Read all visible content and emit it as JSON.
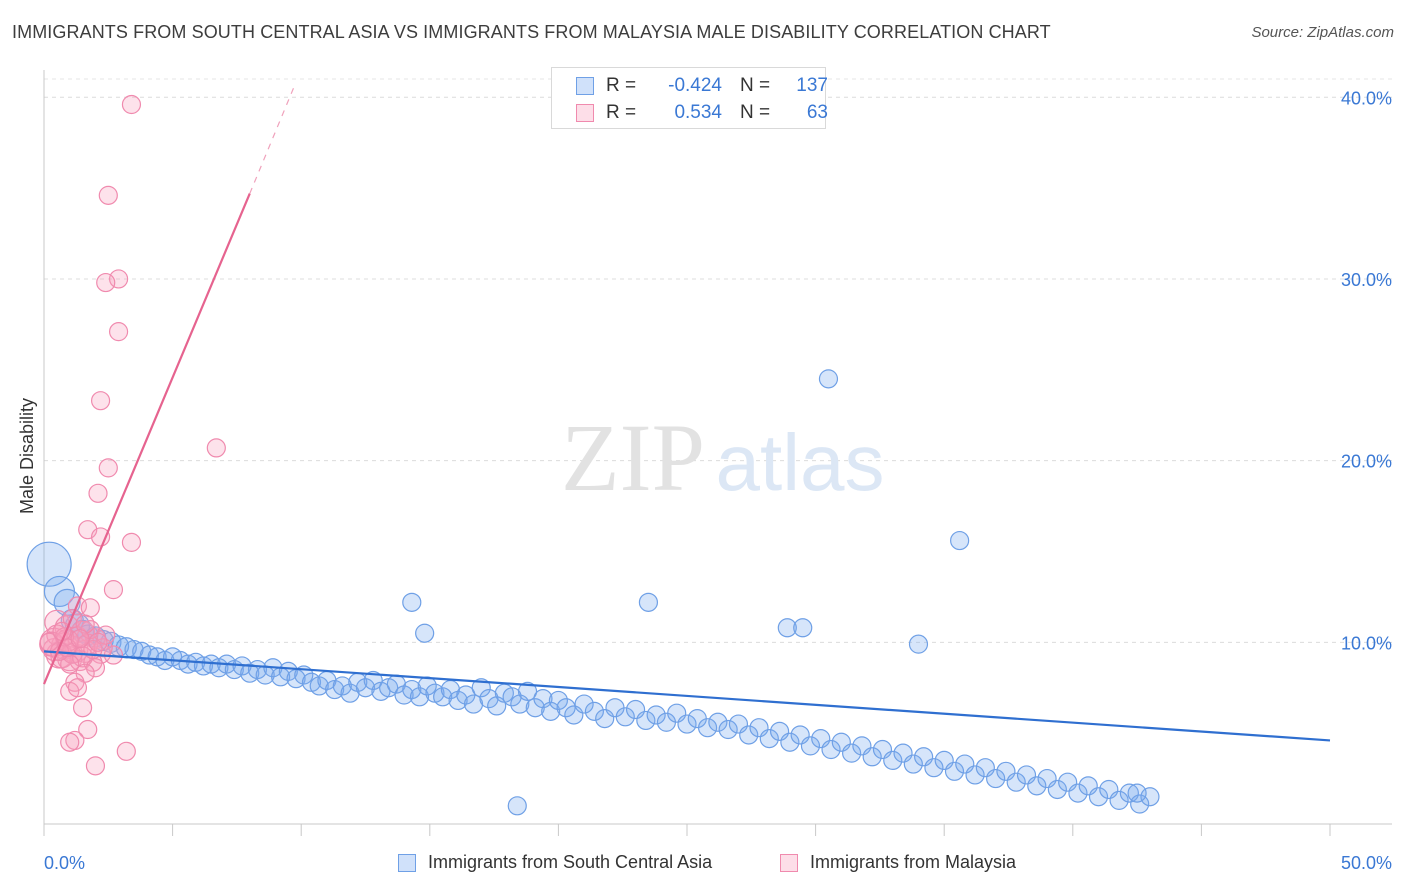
{
  "title": "IMMIGRANTS FROM SOUTH CENTRAL ASIA VS IMMIGRANTS FROM MALAYSIA MALE DISABILITY CORRELATION CHART",
  "source": "Source: ZipAtlas.com",
  "watermark": {
    "zip": "ZIP",
    "atlas": "atlas"
  },
  "colors": {
    "blue_fill": "rgba(120,170,240,0.30)",
    "blue_stroke": "#6fa0e6",
    "blue_line": "#2f6fd0",
    "pink_fill": "rgba(248,160,190,0.30)",
    "pink_stroke": "#f08aae",
    "pink_line": "#e6638f",
    "tick_label": "#3a78d4"
  },
  "stats": {
    "rows": [
      {
        "r_label": "R =",
        "r_value": "-0.424",
        "n_label": "N =",
        "n_value": "137",
        "series": "blue"
      },
      {
        "r_label": "R =",
        "r_value": "0.534",
        "n_label": "N =",
        "n_value": "63",
        "series": "pink"
      }
    ]
  },
  "chart_data": {
    "type": "scatter",
    "title": "IMMIGRANTS FROM SOUTH CENTRAL ASIA VS IMMIGRANTS FROM MALAYSIA MALE DISABILITY CORRELATION CHART",
    "ylabel": "Male Disability",
    "xlabel": "",
    "xlim": [
      0,
      50
    ],
    "ylim": [
      0,
      41.5
    ],
    "x_tick_labels": [
      "0.0%",
      "50.0%"
    ],
    "y_ticks": [
      10,
      20,
      30,
      40
    ],
    "y_tick_labels": [
      "10.0%",
      "20.0%",
      "30.0%",
      "40.0%"
    ],
    "grid": true,
    "legend_position": "bottom",
    "series": [
      {
        "name": "Immigrants from South Central Asia",
        "color": "blue",
        "trend": {
          "x": [
            0,
            50
          ],
          "y": [
            9.5,
            4.6
          ]
        },
        "points": [
          [
            0.2,
            14.3,
            22
          ],
          [
            0.6,
            12.8,
            15
          ],
          [
            0.9,
            12.2,
            13
          ],
          [
            1.1,
            11.2,
            11
          ],
          [
            1.3,
            10.9,
            12
          ],
          [
            1.5,
            10.6,
            11
          ],
          [
            1.7,
            10.4,
            10
          ],
          [
            2.0,
            10.3,
            10
          ],
          [
            2.3,
            10.1,
            10
          ],
          [
            2.6,
            10.0,
            10
          ],
          [
            2.9,
            9.8,
            10
          ],
          [
            3.2,
            9.7,
            10
          ],
          [
            3.5,
            9.6,
            9
          ],
          [
            3.8,
            9.5,
            9
          ],
          [
            4.1,
            9.3,
            9
          ],
          [
            4.4,
            9.2,
            9
          ],
          [
            4.7,
            9.0,
            9
          ],
          [
            5.0,
            9.2,
            9
          ],
          [
            5.3,
            9.0,
            9
          ],
          [
            5.6,
            8.8,
            9
          ],
          [
            5.9,
            8.9,
            9
          ],
          [
            6.2,
            8.7,
            9
          ],
          [
            6.5,
            8.8,
            9
          ],
          [
            6.8,
            8.6,
            9
          ],
          [
            7.1,
            8.8,
            9
          ],
          [
            7.4,
            8.5,
            9
          ],
          [
            7.7,
            8.7,
            9
          ],
          [
            8.0,
            8.3,
            9
          ],
          [
            8.3,
            8.5,
            9
          ],
          [
            8.6,
            8.2,
            9
          ],
          [
            8.9,
            8.6,
            9
          ],
          [
            9.2,
            8.1,
            9
          ],
          [
            9.5,
            8.4,
            9
          ],
          [
            9.8,
            8.0,
            9
          ],
          [
            10.1,
            8.2,
            9
          ],
          [
            10.4,
            7.8,
            9
          ],
          [
            10.7,
            7.6,
            9
          ],
          [
            11.0,
            7.9,
            9
          ],
          [
            11.3,
            7.4,
            9
          ],
          [
            11.6,
            7.6,
            9
          ],
          [
            11.9,
            7.2,
            9
          ],
          [
            12.2,
            7.8,
            9
          ],
          [
            12.5,
            7.5,
            9
          ],
          [
            12.8,
            7.9,
            9
          ],
          [
            13.1,
            7.3,
            9
          ],
          [
            13.4,
            7.5,
            9
          ],
          [
            13.7,
            7.7,
            9
          ],
          [
            14.0,
            7.1,
            9
          ],
          [
            14.3,
            7.4,
            9
          ],
          [
            14.6,
            7.0,
            9
          ],
          [
            14.9,
            7.6,
            9
          ],
          [
            15.2,
            7.2,
            9
          ],
          [
            15.5,
            7.0,
            9
          ],
          [
            15.8,
            7.4,
            9
          ],
          [
            16.1,
            6.8,
            9
          ],
          [
            16.4,
            7.1,
            9
          ],
          [
            16.7,
            6.6,
            9
          ],
          [
            17.0,
            7.5,
            9
          ],
          [
            17.3,
            6.9,
            9
          ],
          [
            17.6,
            6.5,
            9
          ],
          [
            17.9,
            7.2,
            9
          ],
          [
            18.2,
            7.0,
            9
          ],
          [
            18.5,
            6.6,
            9
          ],
          [
            18.8,
            7.3,
            9
          ],
          [
            19.1,
            6.4,
            9
          ],
          [
            19.4,
            6.9,
            9
          ],
          [
            19.7,
            6.2,
            9
          ],
          [
            20.0,
            6.8,
            9
          ],
          [
            20.3,
            6.4,
            9
          ],
          [
            20.6,
            6.0,
            9
          ],
          [
            21.0,
            6.6,
            9
          ],
          [
            21.4,
            6.2,
            9
          ],
          [
            21.8,
            5.8,
            9
          ],
          [
            22.2,
            6.4,
            9
          ],
          [
            22.6,
            5.9,
            9
          ],
          [
            23.0,
            6.3,
            9
          ],
          [
            23.4,
            5.7,
            9
          ],
          [
            23.8,
            6.0,
            9
          ],
          [
            24.2,
            5.6,
            9
          ],
          [
            24.6,
            6.1,
            9
          ],
          [
            25.0,
            5.5,
            9
          ],
          [
            25.4,
            5.8,
            9
          ],
          [
            25.8,
            5.3,
            9
          ],
          [
            26.2,
            5.6,
            9
          ],
          [
            26.6,
            5.2,
            9
          ],
          [
            27.0,
            5.5,
            9
          ],
          [
            27.4,
            4.9,
            9
          ],
          [
            27.8,
            5.3,
            9
          ],
          [
            28.2,
            4.7,
            9
          ],
          [
            28.6,
            5.1,
            9
          ],
          [
            29.0,
            4.5,
            9
          ],
          [
            29.4,
            4.9,
            9
          ],
          [
            29.8,
            4.3,
            9
          ],
          [
            30.2,
            4.7,
            9
          ],
          [
            30.6,
            4.1,
            9
          ],
          [
            31.0,
            4.5,
            9
          ],
          [
            31.4,
            3.9,
            9
          ],
          [
            31.8,
            4.3,
            9
          ],
          [
            32.2,
            3.7,
            9
          ],
          [
            32.6,
            4.1,
            9
          ],
          [
            33.0,
            3.5,
            9
          ],
          [
            33.4,
            3.9,
            9
          ],
          [
            33.8,
            3.3,
            9
          ],
          [
            34.2,
            3.7,
            9
          ],
          [
            34.6,
            3.1,
            9
          ],
          [
            35.0,
            3.5,
            9
          ],
          [
            35.4,
            2.9,
            9
          ],
          [
            35.8,
            3.3,
            9
          ],
          [
            36.2,
            2.7,
            9
          ],
          [
            36.6,
            3.1,
            9
          ],
          [
            37.0,
            2.5,
            9
          ],
          [
            37.4,
            2.9,
            9
          ],
          [
            37.8,
            2.3,
            9
          ],
          [
            38.2,
            2.7,
            9
          ],
          [
            38.6,
            2.1,
            9
          ],
          [
            39.0,
            2.5,
            9
          ],
          [
            39.4,
            1.9,
            9
          ],
          [
            39.8,
            2.3,
            9
          ],
          [
            40.2,
            1.7,
            9
          ],
          [
            40.6,
            2.1,
            9
          ],
          [
            41.0,
            1.5,
            9
          ],
          [
            41.4,
            1.9,
            9
          ],
          [
            41.8,
            1.3,
            9
          ],
          [
            42.2,
            1.7,
            9
          ],
          [
            42.6,
            1.1,
            9
          ],
          [
            43.0,
            1.5,
            9
          ],
          [
            30.5,
            24.5,
            9
          ],
          [
            35.6,
            15.6,
            9
          ],
          [
            28.9,
            10.8,
            9
          ],
          [
            29.5,
            10.8,
            9
          ],
          [
            34.0,
            9.9,
            9
          ],
          [
            23.5,
            12.2,
            9
          ],
          [
            14.3,
            12.2,
            9
          ],
          [
            14.8,
            10.5,
            9
          ],
          [
            18.4,
            1.0,
            9
          ],
          [
            42.5,
            1.7,
            9
          ]
        ]
      },
      {
        "name": "Immigrants from Malaysia",
        "color": "pink",
        "trend": {
          "x": [
            0,
            8.0
          ],
          "y": [
            7.7,
            34.7
          ],
          "dashed_to": [
            9.7,
            40.5
          ]
        },
        "points": [
          [
            3.4,
            39.6,
            9
          ],
          [
            2.5,
            34.6,
            9
          ],
          [
            2.9,
            30.0,
            9
          ],
          [
            2.4,
            29.8,
            9
          ],
          [
            2.9,
            27.1,
            9
          ],
          [
            2.2,
            23.3,
            9
          ],
          [
            6.7,
            20.7,
            9
          ],
          [
            2.5,
            19.6,
            9
          ],
          [
            2.1,
            18.2,
            9
          ],
          [
            1.7,
            16.2,
            9
          ],
          [
            2.2,
            15.8,
            9
          ],
          [
            3.4,
            15.5,
            9
          ],
          [
            2.7,
            12.9,
            9
          ],
          [
            1.3,
            12.0,
            9
          ],
          [
            1.8,
            11.9,
            9
          ],
          [
            0.5,
            11.1,
            12
          ],
          [
            0.9,
            10.8,
            12
          ],
          [
            1.5,
            10.5,
            12
          ],
          [
            2.0,
            10.2,
            10
          ],
          [
            0.4,
            10.0,
            14
          ],
          [
            0.8,
            9.8,
            13
          ],
          [
            1.2,
            9.6,
            13
          ],
          [
            1.6,
            9.5,
            11
          ],
          [
            2.2,
            9.4,
            10
          ],
          [
            2.7,
            9.3,
            9
          ],
          [
            0.6,
            9.3,
            13
          ],
          [
            1.0,
            9.1,
            12
          ],
          [
            1.4,
            9.0,
            10
          ],
          [
            1.9,
            8.9,
            9
          ],
          [
            0.4,
            9.6,
            11
          ],
          [
            0.7,
            9.2,
            11
          ],
          [
            1.1,
            9.4,
            10
          ],
          [
            0.5,
            10.4,
            10
          ],
          [
            1.3,
            10.3,
            10
          ],
          [
            1.7,
            9.9,
            10
          ],
          [
            2.3,
            9.7,
            9
          ],
          [
            0.3,
            9.9,
            12
          ],
          [
            0.9,
            10.1,
            11
          ],
          [
            1.5,
            9.2,
            10
          ],
          [
            2.0,
            8.6,
            9
          ],
          [
            1.0,
            8.8,
            9
          ],
          [
            1.6,
            8.3,
            9
          ],
          [
            1.2,
            7.8,
            9
          ],
          [
            1.0,
            7.3,
            9
          ],
          [
            1.3,
            7.5,
            9
          ],
          [
            1.5,
            6.4,
            9
          ],
          [
            1.7,
            5.2,
            9
          ],
          [
            1.2,
            4.6,
            9
          ],
          [
            1.0,
            4.5,
            9
          ],
          [
            3.2,
            4.0,
            9
          ],
          [
            2.0,
            3.2,
            9
          ],
          [
            1.9,
            9.6,
            9
          ],
          [
            0.8,
            10.3,
            9
          ],
          [
            0.6,
            9.5,
            9
          ],
          [
            1.8,
            10.7,
            9
          ],
          [
            2.4,
            10.4,
            9
          ],
          [
            0.2,
            10.0,
            9
          ],
          [
            1.1,
            11.3,
            9
          ],
          [
            1.6,
            11.0,
            9
          ],
          [
            2.1,
            10.0,
            9
          ],
          [
            0.9,
            9.7,
            9
          ],
          [
            1.4,
            10.2,
            9
          ],
          [
            0.7,
            10.6,
            9
          ]
        ]
      }
    ]
  }
}
